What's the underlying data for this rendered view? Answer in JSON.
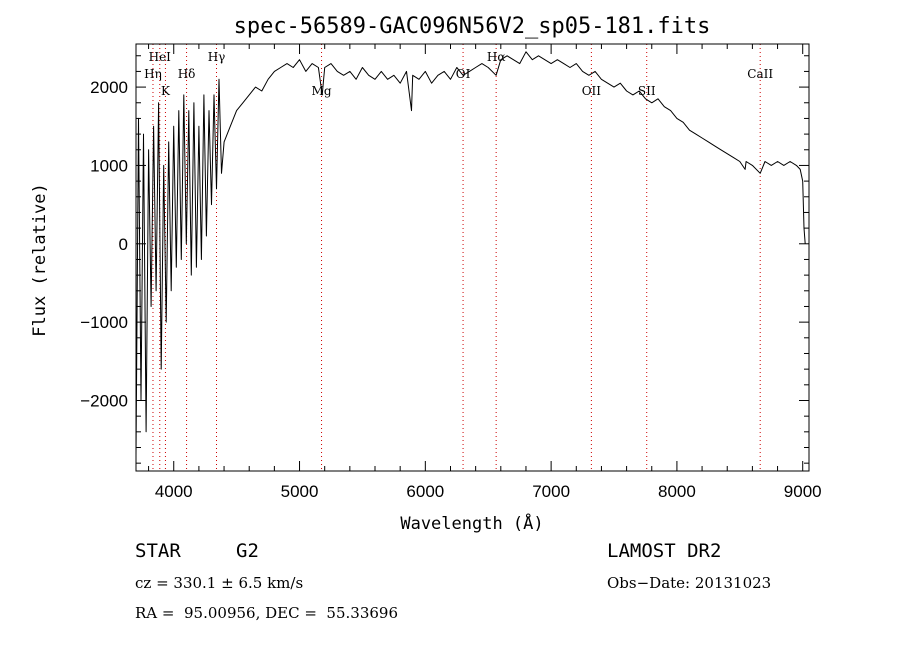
{
  "chart_data": {
    "type": "line",
    "title": "spec-56589-GAC096N56V2_sp05-181.fits",
    "xlabel": "Wavelength (Å)",
    "ylabel": "Flux (relative)",
    "xlim": [
      3700,
      9050
    ],
    "ylim": [
      -2900,
      2550
    ],
    "xticks": [
      4000,
      5000,
      6000,
      7000,
      8000,
      9000
    ],
    "yticks": [
      -2000,
      -1000,
      0,
      1000,
      2000
    ],
    "grid": false,
    "line_color": "#000000",
    "marker_color": "#cc0000",
    "series": [
      {
        "x": [
          3700,
          3720,
          3740,
          3760,
          3780,
          3800,
          3820,
          3840,
          3860,
          3880,
          3900,
          3920,
          3940,
          3960,
          3980,
          4000,
          4020,
          4040,
          4060,
          4080,
          4100,
          4120,
          4140,
          4160,
          4180,
          4200,
          4220,
          4240,
          4260,
          4280,
          4300,
          4320,
          4340,
          4360,
          4380,
          4400,
          4450,
          4500,
          4550,
          4600,
          4650,
          4700,
          4750,
          4800,
          4850,
          4900,
          4950,
          5000,
          5050,
          5100,
          5150,
          5180,
          5200,
          5250,
          5300,
          5350,
          5400,
          5450,
          5500,
          5550,
          5600,
          5650,
          5700,
          5750,
          5800,
          5850,
          5890,
          5900,
          5950,
          6000,
          6050,
          6100,
          6150,
          6200,
          6250,
          6300,
          6350,
          6400,
          6450,
          6500,
          6563,
          6600,
          6650,
          6700,
          6750,
          6800,
          6850,
          6900,
          6950,
          7000,
          7050,
          7100,
          7150,
          7200,
          7250,
          7300,
          7350,
          7400,
          7450,
          7500,
          7550,
          7600,
          7650,
          7700,
          7750,
          7800,
          7850,
          7900,
          7950,
          8000,
          8050,
          8100,
          8150,
          8200,
          8250,
          8300,
          8350,
          8400,
          8450,
          8500,
          8542,
          8550,
          8600,
          8662,
          8700,
          8750,
          8800,
          8850,
          8900,
          8950,
          8980,
          9000,
          9010,
          9020
        ],
        "y": [
          -2700,
          1600,
          -2000,
          1400,
          -2400,
          1200,
          -800,
          1500,
          -600,
          1800,
          -1600,
          1000,
          -1000,
          1300,
          -600,
          1500,
          -300,
          1700,
          -200,
          1900,
          0,
          1700,
          -400,
          1800,
          -300,
          1500,
          -200,
          1900,
          100,
          1700,
          500,
          1900,
          700,
          2100,
          900,
          1300,
          1500,
          1700,
          1800,
          1900,
          2000,
          1950,
          2100,
          2200,
          2250,
          2300,
          2250,
          2350,
          2200,
          2300,
          2250,
          1900,
          2250,
          2300,
          2200,
          2150,
          2200,
          2100,
          2250,
          2150,
          2100,
          2200,
          2100,
          2150,
          2050,
          2200,
          1700,
          2150,
          2100,
          2200,
          2050,
          2150,
          2200,
          2100,
          2250,
          2150,
          2200,
          2250,
          2300,
          2250,
          2150,
          2350,
          2400,
          2350,
          2300,
          2450,
          2350,
          2400,
          2350,
          2300,
          2350,
          2300,
          2250,
          2300,
          2200,
          2150,
          2200,
          2100,
          2050,
          2000,
          2050,
          1950,
          1900,
          1950,
          1850,
          1800,
          1850,
          1750,
          1700,
          1600,
          1550,
          1450,
          1400,
          1350,
          1300,
          1250,
          1200,
          1150,
          1100,
          1050,
          950,
          1050,
          1000,
          900,
          1050,
          1000,
          1050,
          1000,
          1050,
          1000,
          950,
          800,
          200,
          0
        ]
      }
    ],
    "line_markers": [
      {
        "label": "HeI",
        "x": 3889,
        "row": "top"
      },
      {
        "label": "Hη",
        "x": 3835,
        "row": "mid"
      },
      {
        "label": "K",
        "x": 3934,
        "row": "low"
      },
      {
        "label": "Hδ",
        "x": 4102,
        "row": "mid"
      },
      {
        "label": "Hγ",
        "x": 4340,
        "row": "top"
      },
      {
        "label": "Mg",
        "x": 5175,
        "row": "low"
      },
      {
        "label": "OI",
        "x": 6300,
        "row": "mid"
      },
      {
        "label": "Hα",
        "x": 6563,
        "row": "top"
      },
      {
        "label": "OII",
        "x": 7320,
        "row": "low"
      },
      {
        "label": "SII",
        "x": 7760,
        "row": "low"
      },
      {
        "label": "CaII",
        "x": 8662,
        "row": "mid"
      }
    ]
  },
  "info": {
    "class_label": "STAR",
    "subclass": "G2",
    "survey": "LAMOST DR2",
    "cz_text": "cz = 330.1 ± 6.5 km/s",
    "obs_date_text": "Obs−Date: 20131023",
    "radec_text": "RA =  95.00956, DEC =  55.33696"
  }
}
